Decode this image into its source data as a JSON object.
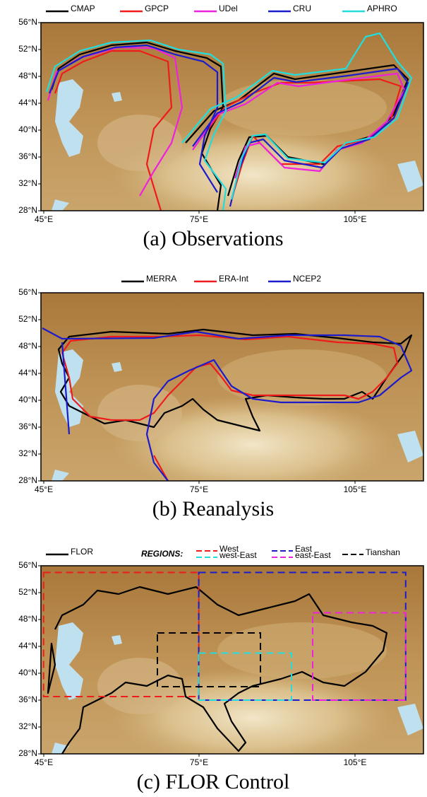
{
  "panels": [
    {
      "caption": "(a) Observations",
      "legend": [
        {
          "name": "CMAP",
          "color": "#000000"
        },
        {
          "name": "GPCP",
          "color": "#ee1c1c"
        },
        {
          "name": "UDel",
          "color": "#ee22dd"
        },
        {
          "name": "CRU",
          "color": "#1c1ccc"
        },
        {
          "name": "APHRO",
          "color": "#22dddd"
        }
      ],
      "y_labels": [
        "56°N",
        "52°N",
        "48°N",
        "44°N",
        "40°N",
        "36°N",
        "32°N",
        "28°N"
      ],
      "x_labels": [
        "45°E",
        "75°E",
        "105°E"
      ]
    },
    {
      "caption": "(b) Reanalysis",
      "legend": [
        {
          "name": "MERRA",
          "color": "#000000"
        },
        {
          "name": "ERA-Int",
          "color": "#ee1c1c"
        },
        {
          "name": "NCEP2",
          "color": "#1c1ccc"
        }
      ],
      "y_labels": [
        "56°N",
        "52°N",
        "48°N",
        "44°N",
        "40°N",
        "36°N",
        "32°N",
        "28°N"
      ],
      "x_labels": [
        "45°E",
        "75°E",
        "105°E"
      ]
    },
    {
      "caption": "(c) FLOR Control",
      "legend": [
        {
          "name": "FLOR",
          "color": "#000000"
        }
      ],
      "regions_title": "REGIONS:",
      "regions": [
        {
          "name": "West",
          "color": "#ee1c1c"
        },
        {
          "name": "west-East",
          "color": "#22dddd"
        },
        {
          "name": "East",
          "color": "#1c1ccc"
        },
        {
          "name": "east-East",
          "color": "#ee22dd"
        },
        {
          "name": "Tianshan",
          "color": "#000000"
        }
      ],
      "y_labels": [
        "56°N",
        "52°N",
        "48°N",
        "44°N",
        "40°N",
        "36°N",
        "32°N",
        "28°N"
      ],
      "x_labels": [
        "45°E",
        "75°E",
        "105°E"
      ]
    }
  ]
}
